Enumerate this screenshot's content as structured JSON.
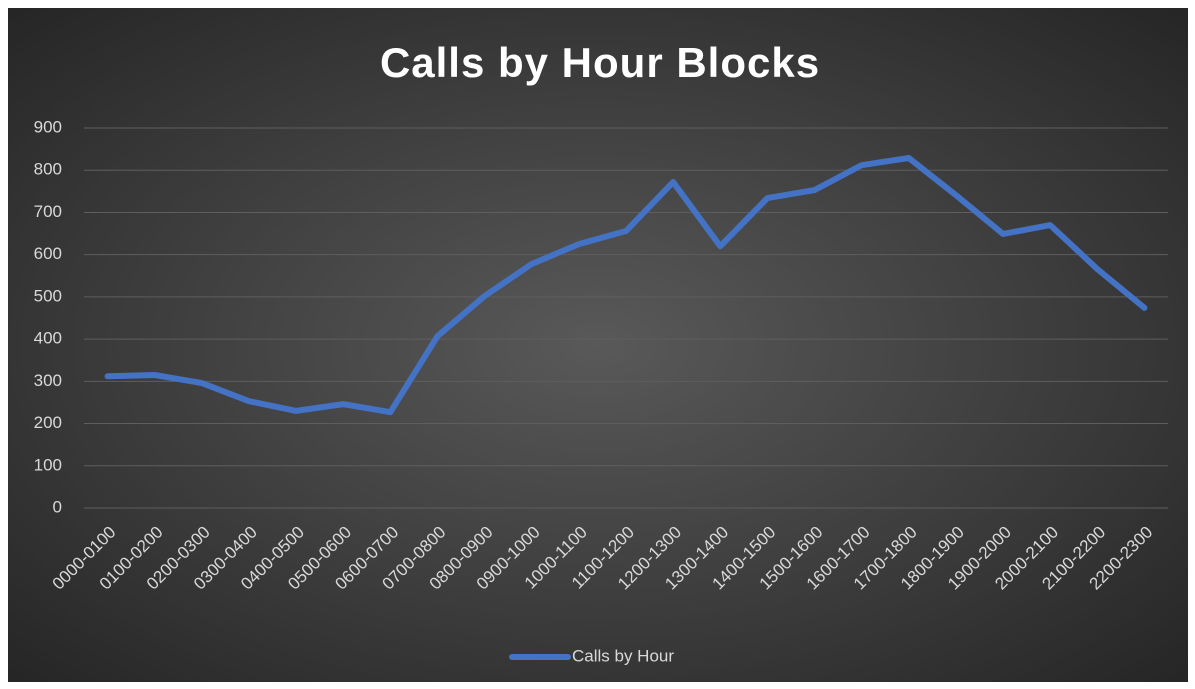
{
  "chart_data": {
    "type": "line",
    "title": "Calls by Hour Blocks",
    "categories": [
      "0000-0100",
      "0100-0200",
      "0200-0300",
      "0300-0400",
      "0400-0500",
      "0500-0600",
      "0600-0700",
      "0700-0800",
      "0800-0900",
      "0900-1000",
      "1000-1100",
      "1100-1200",
      "1200-1300",
      "1300-1400",
      "1400-1500",
      "1500-1600",
      "1600-1700",
      "1700-1800",
      "1800-1900",
      "1900-2000",
      "2000-2100",
      "2100-2200",
      "2200-2300"
    ],
    "series": [
      {
        "name": "Calls by Hour",
        "color": "#4472c4",
        "values": [
          312,
          315,
          296,
          253,
          230,
          246,
          227,
          407,
          502,
          578,
          625,
          656,
          772,
          620,
          734,
          753,
          812,
          829,
          741,
          649,
          670,
          566,
          474
        ]
      }
    ],
    "ylim": [
      0,
      900
    ],
    "yticks": [
      0,
      100,
      200,
      300,
      400,
      500,
      600,
      700,
      800,
      900
    ],
    "grid": true,
    "legend": "bottom"
  }
}
